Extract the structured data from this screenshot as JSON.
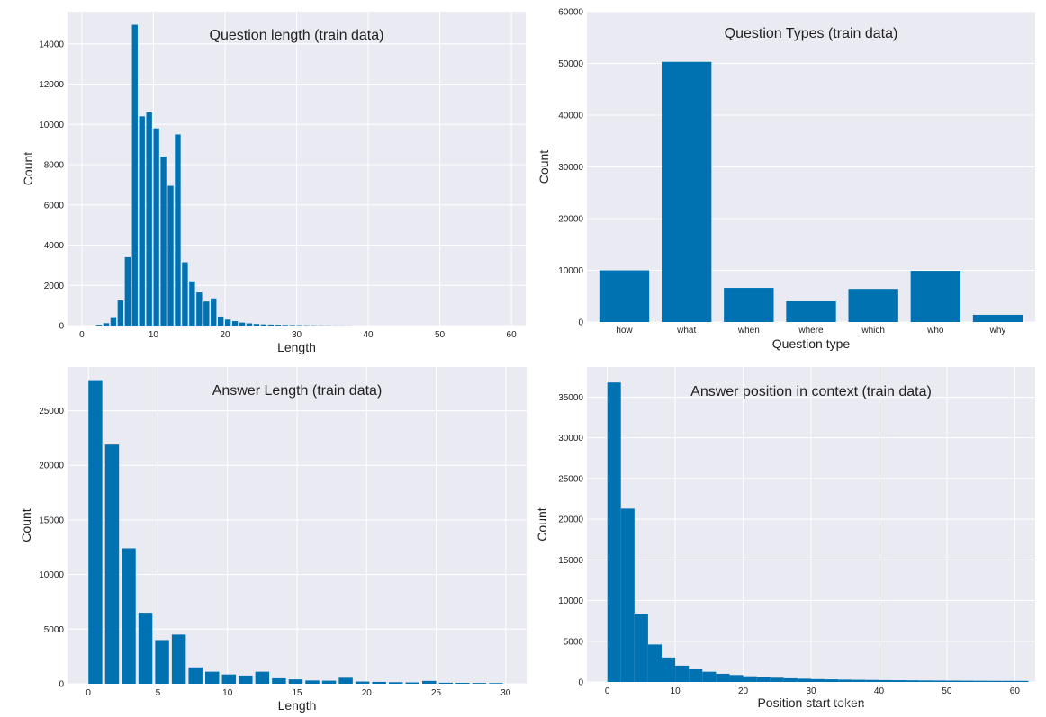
{
  "chart_data": [
    {
      "type": "bar",
      "title": "Question length (train data)",
      "xlabel": "Length",
      "ylabel": "Count",
      "xlim": [
        -2,
        62
      ],
      "ylim": [
        0,
        15600
      ],
      "xticks": [
        0,
        10,
        20,
        30,
        40,
        50,
        60
      ],
      "yticks": [
        0,
        2000,
        4000,
        6000,
        8000,
        10000,
        12000,
        14000
      ],
      "bin_width": 0.8,
      "grid": true,
      "color": "#0072B2",
      "bins": [
        {
          "x": 2,
          "y": 40
        },
        {
          "x": 3,
          "y": 120
        },
        {
          "x": 4,
          "y": 420
        },
        {
          "x": 5,
          "y": 1250
        },
        {
          "x": 6,
          "y": 3400
        },
        {
          "x": 7,
          "y": 14950
        },
        {
          "x": 8,
          "y": 10400
        },
        {
          "x": 9,
          "y": 10600
        },
        {
          "x": 10,
          "y": 9800
        },
        {
          "x": 11,
          "y": 8400
        },
        {
          "x": 12,
          "y": 6950
        },
        {
          "x": 13,
          "y": 9500
        },
        {
          "x": 14,
          "y": 3150
        },
        {
          "x": 15,
          "y": 2200
        },
        {
          "x": 16,
          "y": 1650
        },
        {
          "x": 17,
          "y": 1200
        },
        {
          "x": 18,
          "y": 1350
        },
        {
          "x": 19,
          "y": 450
        },
        {
          "x": 20,
          "y": 300
        },
        {
          "x": 21,
          "y": 220
        },
        {
          "x": 22,
          "y": 150
        },
        {
          "x": 23,
          "y": 110
        },
        {
          "x": 24,
          "y": 80
        },
        {
          "x": 25,
          "y": 60
        },
        {
          "x": 26,
          "y": 50
        },
        {
          "x": 27,
          "y": 40
        },
        {
          "x": 28,
          "y": 30
        },
        {
          "x": 29,
          "y": 25
        },
        {
          "x": 30,
          "y": 20
        },
        {
          "x": 31,
          "y": 15
        },
        {
          "x": 32,
          "y": 12
        },
        {
          "x": 33,
          "y": 10
        },
        {
          "x": 34,
          "y": 8
        },
        {
          "x": 35,
          "y": 6
        },
        {
          "x": 36,
          "y": 5
        },
        {
          "x": 37,
          "y": 4
        }
      ]
    },
    {
      "type": "bar",
      "title": "Question Types (train data)",
      "xlabel": "Question type",
      "ylabel": "Count",
      "ylim": [
        0,
        60000
      ],
      "yticks": [
        0,
        10000,
        20000,
        30000,
        40000,
        50000,
        60000
      ],
      "grid": true,
      "color": "#0072B2",
      "categories": [
        "how",
        "what",
        "when",
        "where",
        "which",
        "who",
        "why"
      ],
      "values": [
        10000,
        50300,
        6600,
        4000,
        6400,
        9900,
        1400
      ]
    },
    {
      "type": "bar",
      "title": "Answer Length (train data)",
      "xlabel": "Length",
      "ylabel": "Count",
      "xlim": [
        -1.5,
        31.5
      ],
      "ylim": [
        0,
        29000
      ],
      "xticks": [
        0,
        5,
        10,
        15,
        20,
        25,
        30
      ],
      "yticks": [
        0,
        5000,
        10000,
        15000,
        20000,
        25000
      ],
      "bin_width": 1,
      "grid": true,
      "color": "#0072B2",
      "bins": [
        {
          "x": 0,
          "y": 27800
        },
        {
          "x": 1.2,
          "y": 21900
        },
        {
          "x": 2.4,
          "y": 12400
        },
        {
          "x": 3.6,
          "y": 6500
        },
        {
          "x": 4.8,
          "y": 4000
        },
        {
          "x": 6,
          "y": 4500
        },
        {
          "x": 7.2,
          "y": 1500
        },
        {
          "x": 8.4,
          "y": 1100
        },
        {
          "x": 9.6,
          "y": 850
        },
        {
          "x": 10.8,
          "y": 750
        },
        {
          "x": 12,
          "y": 1100
        },
        {
          "x": 13.2,
          "y": 500
        },
        {
          "x": 14.4,
          "y": 400
        },
        {
          "x": 15.6,
          "y": 300
        },
        {
          "x": 16.8,
          "y": 280
        },
        {
          "x": 18,
          "y": 550
        },
        {
          "x": 19.2,
          "y": 200
        },
        {
          "x": 20.4,
          "y": 170
        },
        {
          "x": 21.6,
          "y": 140
        },
        {
          "x": 22.8,
          "y": 120
        },
        {
          "x": 24,
          "y": 260
        },
        {
          "x": 25.2,
          "y": 90
        },
        {
          "x": 26.4,
          "y": 80
        },
        {
          "x": 27.6,
          "y": 70
        },
        {
          "x": 28.8,
          "y": 60
        }
      ]
    },
    {
      "type": "bar",
      "title": "Answer position in context (train data)",
      "xlabel": "Position start token",
      "ylabel": "Count",
      "xlim": [
        -3,
        63
      ],
      "ylim": [
        0,
        38700
      ],
      "xticks": [
        0,
        10,
        20,
        30,
        40,
        50,
        60
      ],
      "yticks": [
        0,
        5000,
        10000,
        15000,
        20000,
        25000,
        30000,
        35000
      ],
      "bin_width": 2,
      "grid": true,
      "color": "#0072B2",
      "bins": [
        {
          "x": 0,
          "y": 36800
        },
        {
          "x": 2,
          "y": 21300
        },
        {
          "x": 4,
          "y": 8400
        },
        {
          "x": 6,
          "y": 4600
        },
        {
          "x": 8,
          "y": 3000
        },
        {
          "x": 10,
          "y": 2000
        },
        {
          "x": 12,
          "y": 1550
        },
        {
          "x": 14,
          "y": 1250
        },
        {
          "x": 16,
          "y": 1000
        },
        {
          "x": 18,
          "y": 850
        },
        {
          "x": 20,
          "y": 700
        },
        {
          "x": 22,
          "y": 600
        },
        {
          "x": 24,
          "y": 520
        },
        {
          "x": 26,
          "y": 450
        },
        {
          "x": 28,
          "y": 400
        },
        {
          "x": 30,
          "y": 350
        },
        {
          "x": 32,
          "y": 320
        },
        {
          "x": 34,
          "y": 290
        },
        {
          "x": 36,
          "y": 270
        },
        {
          "x": 38,
          "y": 250
        },
        {
          "x": 40,
          "y": 230
        },
        {
          "x": 42,
          "y": 215
        },
        {
          "x": 44,
          "y": 200
        },
        {
          "x": 46,
          "y": 185
        },
        {
          "x": 48,
          "y": 175
        },
        {
          "x": 50,
          "y": 165
        },
        {
          "x": 52,
          "y": 155
        },
        {
          "x": 54,
          "y": 145
        },
        {
          "x": 56,
          "y": 140
        },
        {
          "x": 58,
          "y": 135
        },
        {
          "x": 60,
          "y": 130
        }
      ]
    }
  ],
  "watermark": "https://blog.csdn.net/qq_32239207"
}
